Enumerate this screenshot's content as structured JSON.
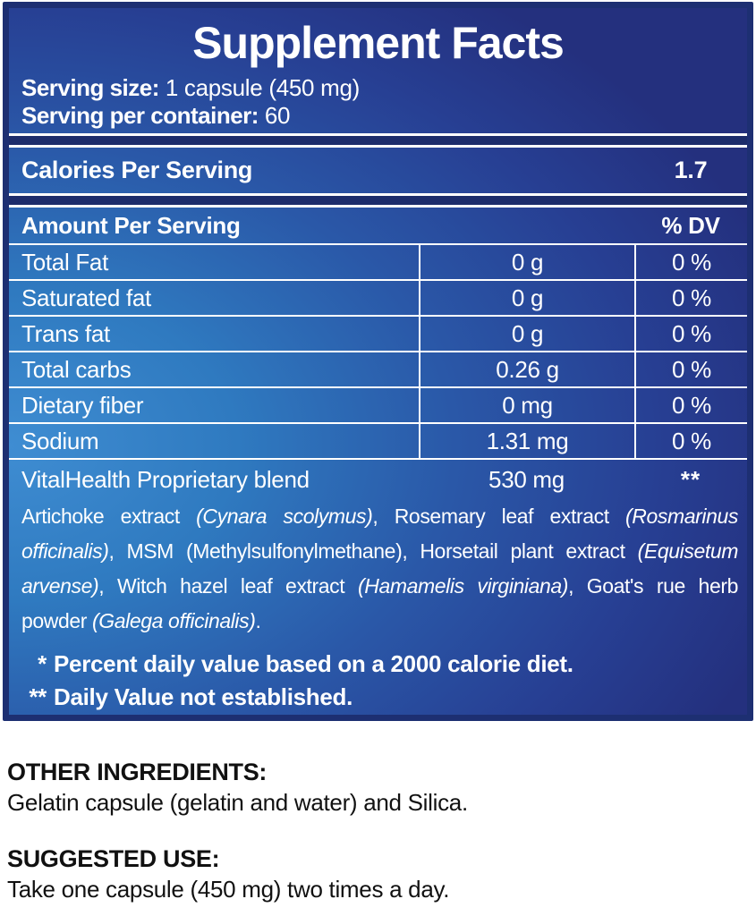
{
  "colors": {
    "panel_blue_light": "#3f8dd2",
    "panel_blue_dark": "#24307e",
    "panel_border": "#1d2f72",
    "rule_white": "#ffffff",
    "text_on_panel": "#ffffff",
    "text_dark": "#111111"
  },
  "panel": {
    "title": "Supplement Facts",
    "serving_size_label": "Serving size:",
    "serving_size_value": " 1 capsule (450 mg)",
    "servings_per_container_label": "Serving per container:",
    "servings_per_container_value": " 60",
    "calories_label": "Calories Per Serving",
    "calories_value": "1.7",
    "table": {
      "amount_header": "Amount Per Serving",
      "dv_header": "% DV",
      "rows": [
        {
          "name": "Total Fat",
          "amount": "0 g",
          "dv": "0 %"
        },
        {
          "name": "Saturated fat",
          "amount": "0 g",
          "dv": "0 %"
        },
        {
          "name": "Trans fat",
          "amount": "0 g",
          "dv": "0 %"
        },
        {
          "name": "Total carbs",
          "amount": "0.26 g",
          "dv": "0 %"
        },
        {
          "name": "Dietary fiber",
          "amount": "0 mg",
          "dv": "0 %"
        },
        {
          "name": "Sodium",
          "amount": "1.31 mg",
          "dv": "0 %"
        }
      ]
    },
    "blend": {
      "name": "VitalHealth Proprietary blend",
      "amount": "530 mg",
      "dv": "**",
      "description_runs": [
        {
          "text": "Artichoke extract ",
          "italic": false
        },
        {
          "text": "(Cynara scolymus)",
          "italic": true
        },
        {
          "text": ", Rosemary leaf extract ",
          "italic": false
        },
        {
          "text": "(Rosmarinus officinalis)",
          "italic": true
        },
        {
          "text": ", MSM (Methylsulfonylmethane), Horsetail plant extract ",
          "italic": false
        },
        {
          "text": "(Equisetum arvense)",
          "italic": true
        },
        {
          "text": ", Witch hazel leaf extract ",
          "italic": false
        },
        {
          "text": "(Hamamelis virginiana)",
          "italic": true
        },
        {
          "text": ", Goat's rue herb powder ",
          "italic": false
        },
        {
          "text": "(Galega officinalis)",
          "italic": true
        },
        {
          "text": ".",
          "italic": false
        }
      ]
    },
    "footnotes": [
      {
        "symbol": "*",
        "text": "Percent daily value based on a 2000 calorie diet."
      },
      {
        "symbol": "**",
        "text": "Daily Value not established."
      }
    ]
  },
  "other_ingredients": {
    "heading": "OTHER INGREDIENTS:",
    "text": "Gelatin capsule (gelatin and water) and Silica."
  },
  "suggested_use": {
    "heading": "SUGGESTED USE:",
    "text": "Take one capsule (450 mg) two times a day."
  }
}
